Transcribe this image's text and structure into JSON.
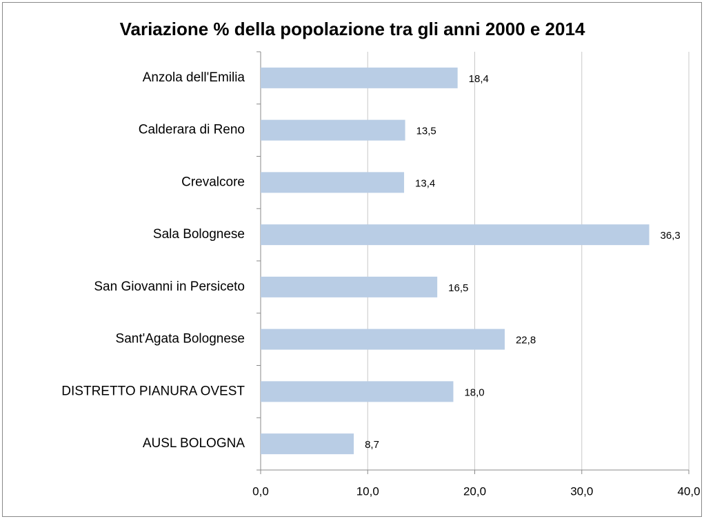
{
  "chart_data": {
    "type": "bar",
    "orientation": "horizontal",
    "title": "Variazione % della popolazione tra gli anni 2000 e 2014",
    "categories": [
      "Anzola dell'Emilia",
      "Calderara di Reno",
      "Crevalcore",
      "Sala Bolognese",
      "San Giovanni in Persiceto",
      "Sant'Agata Bolognese",
      "DISTRETTO PIANURA OVEST",
      "AUSL BOLOGNA"
    ],
    "values": [
      18.4,
      13.5,
      13.4,
      36.3,
      16.5,
      22.8,
      18.0,
      8.7
    ],
    "value_labels": [
      "18,4",
      "13,5",
      "13,4",
      "36,3",
      "16,5",
      "22,8",
      "18,0",
      "8,7"
    ],
    "color": "#b9cde5",
    "xlim": [
      0,
      40
    ],
    "xticks": [
      {
        "value": 0,
        "label": "0,0"
      },
      {
        "value": 10,
        "label": "10,0"
      },
      {
        "value": 20,
        "label": "20,0"
      },
      {
        "value": 30,
        "label": "30,0"
      },
      {
        "value": 40,
        "label": "40,0"
      }
    ],
    "grid": true
  }
}
